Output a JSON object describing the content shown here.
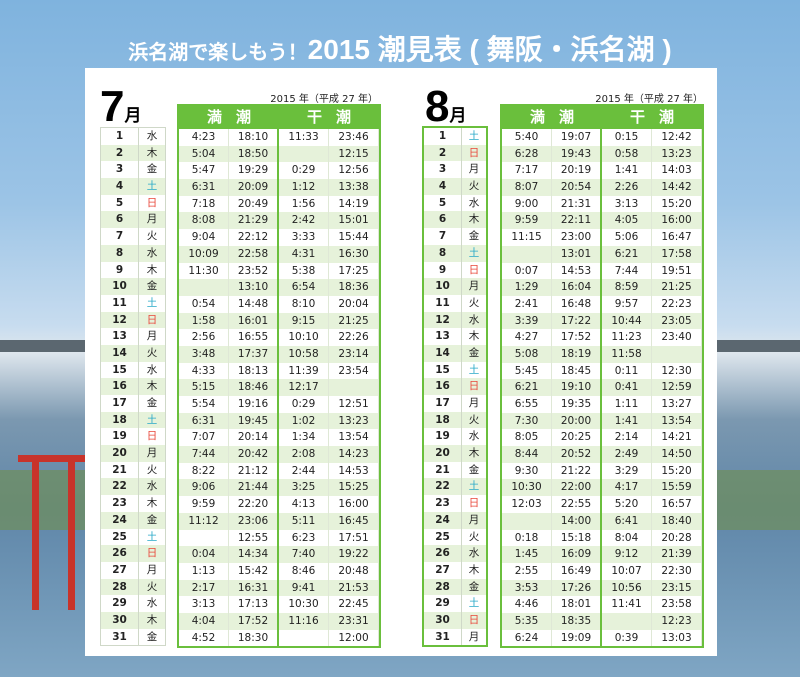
{
  "title": {
    "sub": "浜名湖で楽しもう！",
    "main": "2015 潮見表 ( 舞阪・浜名湖 )"
  },
  "colors": {
    "green": "#6abf3c",
    "saturday": "#29a9c8",
    "sunday": "#e8473a"
  },
  "months": [
    {
      "month": "7",
      "unit": "月",
      "year": "2015 年（平成 27 年）",
      "high_label": "満潮",
      "low_label": "干潮",
      "rows": [
        [
          "1",
          "水",
          "4:23",
          "18:10",
          "11:33",
          "23:46"
        ],
        [
          "2",
          "木",
          "5:04",
          "18:50",
          "",
          "12:15"
        ],
        [
          "3",
          "金",
          "5:47",
          "19:29",
          "0:29",
          "12:56"
        ],
        [
          "4",
          "土",
          "6:31",
          "20:09",
          "1:12",
          "13:38"
        ],
        [
          "5",
          "日",
          "7:18",
          "20:49",
          "1:56",
          "14:19"
        ],
        [
          "6",
          "月",
          "8:08",
          "21:29",
          "2:42",
          "15:01"
        ],
        [
          "7",
          "火",
          "9:04",
          "22:12",
          "3:33",
          "15:44"
        ],
        [
          "8",
          "水",
          "10:09",
          "22:58",
          "4:31",
          "16:30"
        ],
        [
          "9",
          "木",
          "11:30",
          "23:52",
          "5:38",
          "17:25"
        ],
        [
          "10",
          "金",
          "",
          "13:10",
          "6:54",
          "18:36"
        ],
        [
          "11",
          "土",
          "0:54",
          "14:48",
          "8:10",
          "20:04"
        ],
        [
          "12",
          "日",
          "1:58",
          "16:01",
          "9:15",
          "21:25"
        ],
        [
          "13",
          "月",
          "2:56",
          "16:55",
          "10:10",
          "22:26"
        ],
        [
          "14",
          "火",
          "3:48",
          "17:37",
          "10:58",
          "23:14"
        ],
        [
          "15",
          "水",
          "4:33",
          "18:13",
          "11:39",
          "23:54"
        ],
        [
          "16",
          "木",
          "5:15",
          "18:46",
          "12:17",
          ""
        ],
        [
          "17",
          "金",
          "5:54",
          "19:16",
          "0:29",
          "12:51"
        ],
        [
          "18",
          "土",
          "6:31",
          "19:45",
          "1:02",
          "13:23"
        ],
        [
          "19",
          "日",
          "7:07",
          "20:14",
          "1:34",
          "13:54"
        ],
        [
          "20",
          "月",
          "7:44",
          "20:42",
          "2:08",
          "14:23"
        ],
        [
          "21",
          "火",
          "8:22",
          "21:12",
          "2:44",
          "14:53"
        ],
        [
          "22",
          "水",
          "9:06",
          "21:44",
          "3:25",
          "15:25"
        ],
        [
          "23",
          "木",
          "9:59",
          "22:20",
          "4:13",
          "16:00"
        ],
        [
          "24",
          "金",
          "11:12",
          "23:06",
          "5:11",
          "16:45"
        ],
        [
          "25",
          "土",
          "",
          "12:55",
          "6:23",
          "17:51"
        ],
        [
          "26",
          "日",
          "0:04",
          "14:34",
          "7:40",
          "19:22"
        ],
        [
          "27",
          "月",
          "1:13",
          "15:42",
          "8:46",
          "20:48"
        ],
        [
          "28",
          "火",
          "2:17",
          "16:31",
          "9:41",
          "21:53"
        ],
        [
          "29",
          "水",
          "3:13",
          "17:13",
          "10:30",
          "22:45"
        ],
        [
          "30",
          "木",
          "4:04",
          "17:52",
          "11:16",
          "23:31"
        ],
        [
          "31",
          "金",
          "4:52",
          "18:30",
          "",
          "12:00"
        ]
      ]
    },
    {
      "month": "8",
      "unit": "月",
      "year": "2015 年（平成 27 年）",
      "high_label": "満潮",
      "low_label": "干潮",
      "rows": [
        [
          "1",
          "土",
          "5:40",
          "19:07",
          "0:15",
          "12:42"
        ],
        [
          "2",
          "日",
          "6:28",
          "19:43",
          "0:58",
          "13:23"
        ],
        [
          "3",
          "月",
          "7:17",
          "20:19",
          "1:41",
          "14:03"
        ],
        [
          "4",
          "火",
          "8:07",
          "20:54",
          "2:26",
          "14:42"
        ],
        [
          "5",
          "水",
          "9:00",
          "21:31",
          "3:13",
          "15:20"
        ],
        [
          "6",
          "木",
          "9:59",
          "22:11",
          "4:05",
          "16:00"
        ],
        [
          "7",
          "金",
          "11:15",
          "23:00",
          "5:06",
          "16:47"
        ],
        [
          "8",
          "土",
          "",
          "13:01",
          "6:21",
          "17:58"
        ],
        [
          "9",
          "日",
          "0:07",
          "14:53",
          "7:44",
          "19:51"
        ],
        [
          "10",
          "月",
          "1:29",
          "16:04",
          "8:59",
          "21:25"
        ],
        [
          "11",
          "火",
          "2:41",
          "16:48",
          "9:57",
          "22:23"
        ],
        [
          "12",
          "水",
          "3:39",
          "17:22",
          "10:44",
          "23:05"
        ],
        [
          "13",
          "木",
          "4:27",
          "17:52",
          "11:23",
          "23:40"
        ],
        [
          "14",
          "金",
          "5:08",
          "18:19",
          "11:58",
          ""
        ],
        [
          "15",
          "土",
          "5:45",
          "18:45",
          "0:11",
          "12:30"
        ],
        [
          "16",
          "日",
          "6:21",
          "19:10",
          "0:41",
          "12:59"
        ],
        [
          "17",
          "月",
          "6:55",
          "19:35",
          "1:11",
          "13:27"
        ],
        [
          "18",
          "火",
          "7:30",
          "20:00",
          "1:41",
          "13:54"
        ],
        [
          "19",
          "水",
          "8:05",
          "20:25",
          "2:14",
          "14:21"
        ],
        [
          "20",
          "木",
          "8:44",
          "20:52",
          "2:49",
          "14:50"
        ],
        [
          "21",
          "金",
          "9:30",
          "21:22",
          "3:29",
          "15:20"
        ],
        [
          "22",
          "土",
          "10:30",
          "22:00",
          "4:17",
          "15:59"
        ],
        [
          "23",
          "日",
          "12:03",
          "22:55",
          "5:20",
          "16:57"
        ],
        [
          "24",
          "月",
          "",
          "14:00",
          "6:41",
          "18:40"
        ],
        [
          "25",
          "火",
          "0:18",
          "15:18",
          "8:04",
          "20:28"
        ],
        [
          "26",
          "水",
          "1:45",
          "16:09",
          "9:12",
          "21:39"
        ],
        [
          "27",
          "木",
          "2:55",
          "16:49",
          "10:07",
          "22:30"
        ],
        [
          "28",
          "金",
          "3:53",
          "17:26",
          "10:56",
          "23:15"
        ],
        [
          "29",
          "土",
          "4:46",
          "18:01",
          "11:41",
          "23:58"
        ],
        [
          "30",
          "日",
          "5:35",
          "18:35",
          "",
          "12:23"
        ],
        [
          "31",
          "月",
          "6:24",
          "19:09",
          "0:39",
          "13:03"
        ]
      ]
    }
  ]
}
